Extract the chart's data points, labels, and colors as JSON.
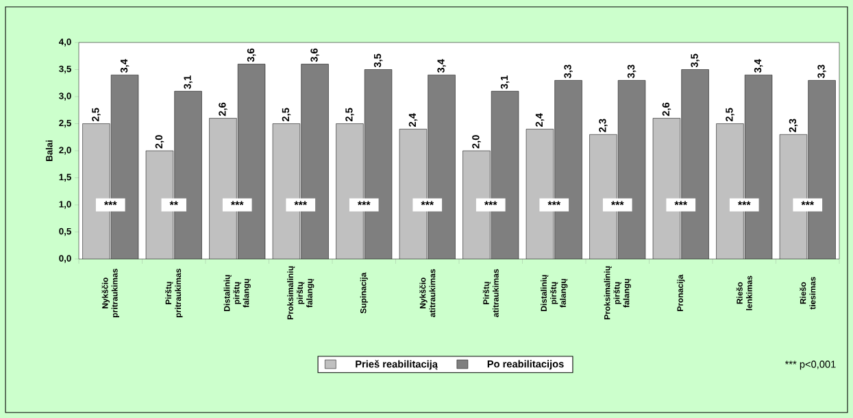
{
  "chart_data": {
    "type": "bar",
    "ylabel": "Balai",
    "categories": [
      "Nykščio pritraukimas",
      "Pirštų pritraukimas",
      "Distalinių pirštų falangų",
      "Proksimalinių pirštų falangų",
      "Supinacija",
      "Nykščio atitraukimas",
      "Pirštų atitraukimas",
      "Distalinių pirštų falangų",
      "Proksimalinių pirštų falangų",
      "Pronacija",
      "Riešo lenkimas",
      "Riešo tiesimas"
    ],
    "series": [
      {
        "name": "Prieš reabilitaciją",
        "color": "#c0c0c0",
        "values": [
          2.5,
          2.0,
          2.6,
          2.5,
          2.5,
          2.4,
          2.0,
          2.4,
          2.3,
          2.6,
          2.5,
          2.3
        ],
        "value_labels": [
          "2,5",
          "2,0",
          "2,6",
          "2,5",
          "2,5",
          "2,4",
          "2,0",
          "2,4",
          "2,3",
          "2,6",
          "2,5",
          "2,3"
        ]
      },
      {
        "name": "Po reabilitacijos",
        "color": "#7f7f7f",
        "values": [
          3.4,
          3.1,
          3.6,
          3.6,
          3.5,
          3.4,
          3.1,
          3.3,
          3.3,
          3.5,
          3.4,
          3.3
        ],
        "value_labels": [
          "3,4",
          "3,1",
          "3,6",
          "3,6",
          "3,5",
          "3,4",
          "3,1",
          "3,3",
          "3,3",
          "3,5",
          "3,4",
          "3,3"
        ]
      }
    ],
    "ylim": [
      0,
      4
    ],
    "yticks": [
      {
        "value": 0,
        "label": "0,0"
      },
      {
        "value": 0.5,
        "label": "0,5"
      },
      {
        "value": 1,
        "label": "1,0"
      },
      {
        "value": 1.5,
        "label": "1,5"
      },
      {
        "value": 2,
        "label": "2,0"
      },
      {
        "value": 2.5,
        "label": "2,5"
      },
      {
        "value": 3,
        "label": "3,0"
      },
      {
        "value": 3.5,
        "label": "3,5"
      },
      {
        "value": 4,
        "label": "4,0"
      }
    ],
    "legend": "bottom",
    "annotations": [
      "***",
      "**",
      "***",
      "***",
      "***",
      "***",
      "***",
      "***",
      "***",
      "***",
      "***",
      "***",
      "*** p<0,001"
    ]
  }
}
